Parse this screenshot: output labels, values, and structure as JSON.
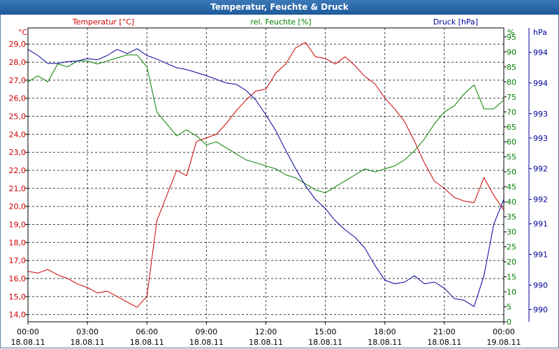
{
  "window": {
    "title": "Temperatur, Feuchte & Druck"
  },
  "colors": {
    "temperature": "#cc0000",
    "humidity": "#008000",
    "pressure": "#000099"
  },
  "chart_data": {
    "type": "line",
    "title": "Temperatur, Feuchte & Druck",
    "grid": true,
    "x_ticks": [
      {
        "time": "00:00",
        "date": "18.08.11"
      },
      {
        "time": "03:00",
        "date": "18.08.11"
      },
      {
        "time": "06:00",
        "date": "18.08.11"
      },
      {
        "time": "09:00",
        "date": "18.08.11"
      },
      {
        "time": "12:00",
        "date": "18.08.11"
      },
      {
        "time": "15:00",
        "date": "18.08.11"
      },
      {
        "time": "18:00",
        "date": "18.08.11"
      },
      {
        "time": "21:00",
        "date": "18.08.11"
      },
      {
        "time": "00:00",
        "date": "19.08.11"
      }
    ],
    "x_range_hours": [
      0,
      24
    ],
    "axes": {
      "temperature": {
        "unit": "°C",
        "label": "Temperatur [°C]",
        "range": [
          13.6,
          29.9
        ],
        "ticks": [
          "14,0",
          "15,0",
          "16,0",
          "17,0",
          "18,0",
          "19,0",
          "20,0",
          "21,0",
          "22,0",
          "23,0",
          "24,0",
          "25,0",
          "26,0",
          "27,0",
          "28,0",
          "29,0"
        ]
      },
      "humidity": {
        "unit": "%",
        "label": "rel. Feuchte [%]",
        "range": [
          0,
          98
        ],
        "ticks": [
          "0",
          "5",
          "10",
          "15",
          "20",
          "25",
          "30",
          "35",
          "40",
          "45",
          "50",
          "55",
          "60",
          "65",
          "70",
          "75",
          "80",
          "85",
          "90",
          "95"
        ]
      },
      "pressure": {
        "unit": "hPa",
        "label": "Druck [hPa]",
        "range": [
          989.6,
          994.4
        ],
        "ticks": [
          {
            "value": 989.8,
            "label": "990"
          },
          {
            "value": 990.2,
            "label": "990"
          },
          {
            "value": 990.7,
            "label": "991"
          },
          {
            "value": 991.2,
            "label": "991"
          },
          {
            "value": 991.6,
            "label": "992"
          },
          {
            "value": 992.1,
            "label": "992"
          },
          {
            "value": 992.6,
            "label": "993"
          },
          {
            "value": 993.0,
            "label": "993"
          },
          {
            "value": 993.5,
            "label": "994"
          },
          {
            "value": 994.0,
            "label": "994"
          }
        ]
      }
    },
    "series": [
      {
        "name": "Temperatur [°C]",
        "axis": "temperature",
        "x": [
          0,
          0.5,
          1,
          1.5,
          2,
          2.5,
          3,
          3.5,
          4,
          4.5,
          5,
          5.5,
          6,
          6.5,
          7,
          7.5,
          8,
          8.5,
          9,
          9.5,
          10,
          10.5,
          11,
          11.5,
          12,
          12.5,
          13,
          13.5,
          14,
          14.5,
          15,
          15.5,
          16,
          16.5,
          17,
          17.5,
          18,
          18.5,
          19,
          19.5,
          20,
          20.5,
          21,
          21.5,
          22,
          22.5,
          23,
          23.5,
          24
        ],
        "values": [
          16.4,
          16.3,
          16.5,
          16.2,
          16.0,
          15.7,
          15.5,
          15.2,
          15.3,
          15.0,
          14.7,
          14.4,
          15.0,
          19.2,
          20.6,
          22.0,
          21.7,
          23.6,
          23.8,
          24.0,
          24.6,
          25.3,
          25.9,
          26.4,
          26.5,
          27.4,
          27.9,
          28.8,
          29.1,
          28.3,
          28.2,
          27.9,
          28.3,
          27.8,
          27.2,
          26.8,
          26.0,
          25.4,
          24.7,
          23.6,
          22.4,
          21.4,
          21.0,
          20.5,
          20.3,
          20.2,
          21.6,
          20.6,
          19.8
        ]
      },
      {
        "name": "rel. Feuchte [%]",
        "axis": "humidity",
        "x": [
          0,
          0.5,
          1,
          1.5,
          2,
          2.5,
          3,
          3.5,
          4,
          4.5,
          5,
          5.5,
          6,
          6.5,
          7,
          7.5,
          8,
          8.5,
          9,
          9.5,
          10,
          10.5,
          11,
          11.5,
          12,
          12.5,
          13,
          13.5,
          14,
          14.5,
          15,
          15.5,
          16,
          16.5,
          17,
          17.5,
          18,
          18.5,
          19,
          19.5,
          20,
          20.5,
          21,
          21.5,
          22,
          22.5,
          23,
          23.5,
          24
        ],
        "values": [
          80,
          82,
          80,
          86,
          85,
          87,
          87,
          86,
          87,
          88,
          89,
          89,
          85,
          70,
          66,
          62,
          64,
          62,
          59,
          60,
          58,
          56,
          54,
          53,
          52,
          51,
          49,
          48,
          46,
          44,
          43,
          45,
          47,
          49,
          51,
          50,
          51,
          52,
          54,
          57,
          61,
          66,
          70,
          72,
          76,
          79,
          71,
          71,
          74
        ]
      },
      {
        "name": "Druck [hPa]",
        "axis": "pressure",
        "x": [
          0,
          0.5,
          1,
          1.5,
          2,
          2.5,
          3,
          3.5,
          4,
          4.5,
          5,
          5.5,
          6,
          6.5,
          7,
          7.5,
          8,
          8.5,
          9,
          9.5,
          10,
          10.5,
          11,
          11.5,
          12,
          12.5,
          13,
          13.5,
          14,
          14.5,
          15,
          15.5,
          16,
          16.5,
          17,
          17.5,
          18,
          18.5,
          19,
          19.5,
          20,
          20.5,
          21,
          21.5,
          22,
          22.5,
          23,
          23.5,
          24
        ],
        "values": [
          994.05,
          993.95,
          993.82,
          993.82,
          993.85,
          993.86,
          993.9,
          993.88,
          993.95,
          994.05,
          993.98,
          994.06,
          993.95,
          993.89,
          993.82,
          993.75,
          993.72,
          993.67,
          993.62,
          993.56,
          993.5,
          993.48,
          993.38,
          993.22,
          992.98,
          992.72,
          992.4,
          992.1,
          991.82,
          991.6,
          991.45,
          991.25,
          991.1,
          990.98,
          990.8,
          990.52,
          990.28,
          990.22,
          990.25,
          990.35,
          990.22,
          990.25,
          990.15,
          989.98,
          989.95,
          989.85,
          990.35,
          991.2,
          991.6
        ]
      }
    ]
  }
}
